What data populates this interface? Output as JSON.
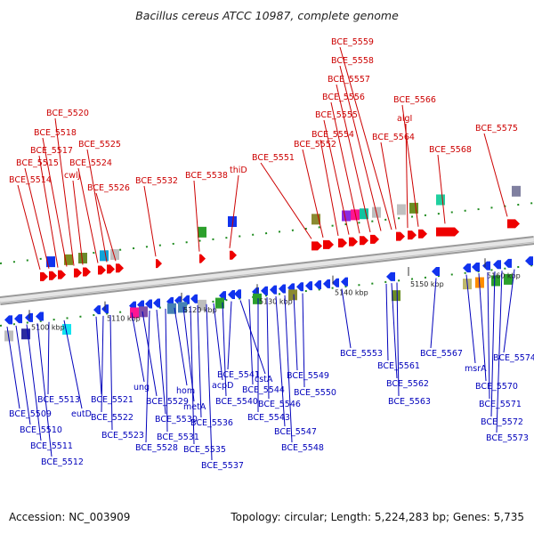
{
  "title": "Bacillus cereus ATCC 10987, complete genome",
  "footer": {
    "accession": "Accession: NC_003909",
    "topology": "Topology: circular; Length: 5,224,283 bp; Genes: 5,735"
  },
  "colors": {
    "forward": "#ee0000",
    "reverse": "#1133ee",
    "leader_top": "#cc0000",
    "leader_bottom": "#0000bb"
  },
  "ticks": [
    "5100 kbp",
    "5110 kbp",
    "5120 kbp",
    "5130 kbp",
    "5140 kbp",
    "5150 kbp",
    "5160 kbp"
  ],
  "top_labels": [
    "BCE_5514",
    "BCE_5515",
    "BCE_5517",
    "BCE_5518",
    "BCE_5520",
    "cwlJ",
    "BCE_5524",
    "BCE_5525",
    "BCE_5526",
    "BCE_5532",
    "BCE_5538",
    "thiD",
    "BCE_5551",
    "BCE_5552",
    "BCE_5554",
    "BCE_5555",
    "BCE_5556",
    "BCE_5557",
    "BCE_5558",
    "BCE_5559",
    "BCE_5564",
    "algI",
    "BCE_5566",
    "BCE_5568",
    "BCE_5575"
  ],
  "bottom_labels": [
    "BCE_5509",
    "BCE_5510",
    "BCE_5511",
    "BCE_5512",
    "BCE_5513",
    "eutD",
    "BCE_5521",
    "BCE_5522",
    "BCE_5523",
    "ung",
    "BCE_5529",
    "BCE_5528",
    "BCE_5530",
    "BCE_5531",
    "hom",
    "metA",
    "BCE_5535",
    "BCE_5536",
    "BCE_5537",
    "acpD",
    "BCE_5540",
    "BCE_5541",
    "cstA",
    "BCE_5544",
    "BCE_5543",
    "BCE_5546",
    "BCE_5547",
    "BCE_5548",
    "BCE_5549",
    "BCE_5550",
    "BCE_5553",
    "BCE_5561",
    "BCE_5562",
    "BCE_5563",
    "BCE_5567",
    "msrA",
    "BCE_5570",
    "BCE_5571",
    "BCE_5572",
    "BCE_5573",
    "BCE_5574"
  ]
}
